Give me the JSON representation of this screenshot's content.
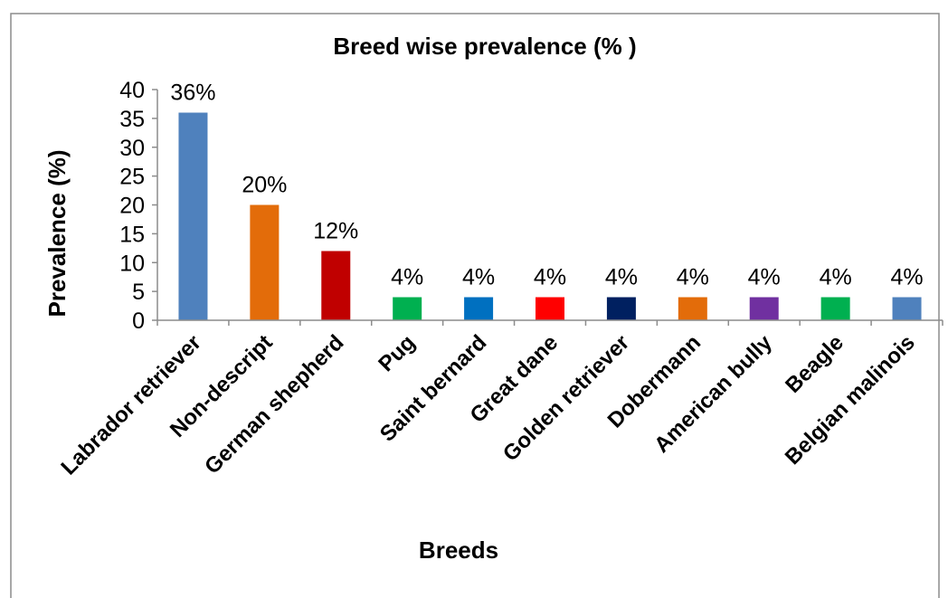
{
  "chart_data": {
    "type": "bar",
    "title": "Breed wise prevalence (% )",
    "xlabel": "Breeds",
    "ylabel": "Prevalence (%)",
    "ylim": [
      0,
      40
    ],
    "yticks": [
      "0",
      "5",
      "10",
      "15",
      "20",
      "25",
      "30",
      "35",
      "40"
    ],
    "grid": false,
    "legend": "none",
    "categories": [
      "Labrador retriever",
      "Non-descript",
      "German shepherd",
      "Pug",
      "Saint bernard",
      "Great dane",
      "Golden retriever",
      "Dobermann",
      "American bully",
      "Beagle",
      "Belgian malinois"
    ],
    "values": [
      36,
      20,
      12,
      4,
      4,
      4,
      4,
      4,
      4,
      4,
      4
    ],
    "data_labels": [
      "36%",
      "20%",
      "12%",
      "4%",
      "4%",
      "4%",
      "4%",
      "4%",
      "4%",
      "4%",
      "4%"
    ],
    "colors": [
      "#4f81bd",
      "#e36c0a",
      "#c00000",
      "#00b050",
      "#0070c0",
      "#ff0000",
      "#002060",
      "#e36c0a",
      "#7030a0",
      "#00b050",
      "#4f81bd"
    ]
  }
}
